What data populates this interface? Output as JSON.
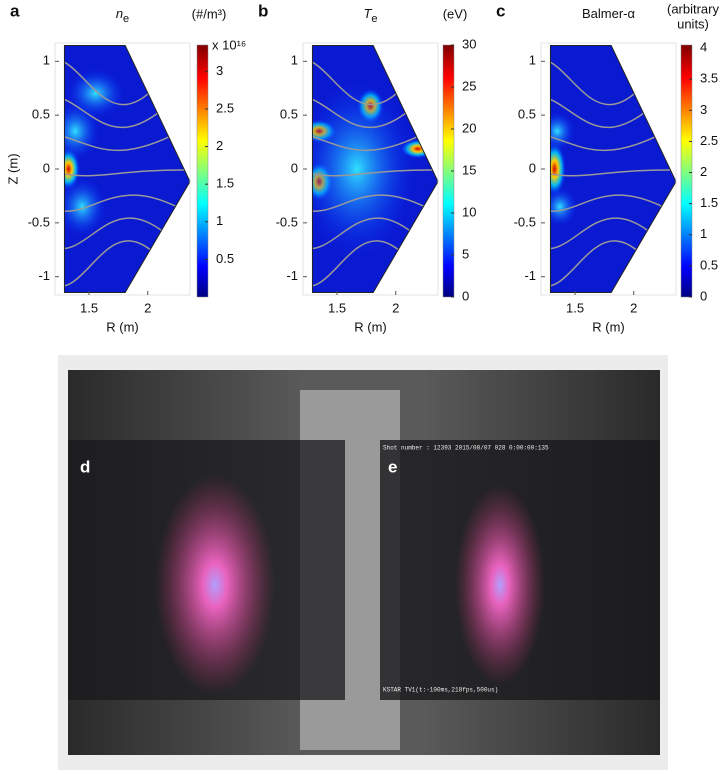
{
  "chart_data": [
    {
      "type": "heatmap",
      "panel": "a",
      "title": "n",
      "title_subscript": "e",
      "colorbar_label": [
        "(#/m³)"
      ],
      "colorbar_multiplier": "x 10¹⁶",
      "xlabel": "R (m)",
      "ylabel": "Z (m)",
      "xlim": [
        1.21,
        2.36
      ],
      "ylim": [
        -1.17,
        1.17
      ],
      "xticks": [
        1.5,
        2
      ],
      "yticks": [
        -1,
        -0.5,
        0,
        0.5,
        1
      ],
      "clim": [
        0,
        3.35
      ],
      "cticks": [
        0.5,
        1,
        1.5,
        2,
        2.5,
        3
      ]
    },
    {
      "type": "heatmap",
      "panel": "b",
      "title": "T",
      "title_subscript": "e",
      "colorbar_label": [
        "(eV)"
      ],
      "xlabel": "R (m)",
      "xlim": [
        1.21,
        2.36
      ],
      "ylim": [
        -1.17,
        1.17
      ],
      "xticks": [
        1.5,
        2
      ],
      "yticks": [
        -1,
        -0.5,
        0,
        0.5,
        1
      ],
      "clim": [
        0,
        30
      ],
      "cticks": [
        0,
        5,
        10,
        15,
        20,
        25,
        30
      ]
    },
    {
      "type": "heatmap",
      "panel": "c",
      "title": "Balmer-α",
      "colorbar_label": [
        "(arbitrary",
        "units)"
      ],
      "xlabel": "R (m)",
      "xlim": [
        1.21,
        2.36
      ],
      "ylim": [
        -1.17,
        1.17
      ],
      "xticks": [
        1.5,
        2
      ],
      "yticks": [
        -1,
        -0.5,
        0,
        0.5,
        1
      ],
      "clim": [
        0,
        4.05
      ],
      "cticks": [
        0,
        0.5,
        1,
        1.5,
        2,
        2.5,
        3,
        3.5,
        4
      ]
    }
  ],
  "photos": {
    "left_label": "d",
    "right_label": "e",
    "overlay_top": "Shot number : 12393 2015/08/07      028                 0:00:00:135",
    "overlay_bottom": "KSTAR TV1(t:-100ms,218fps,500us)"
  }
}
